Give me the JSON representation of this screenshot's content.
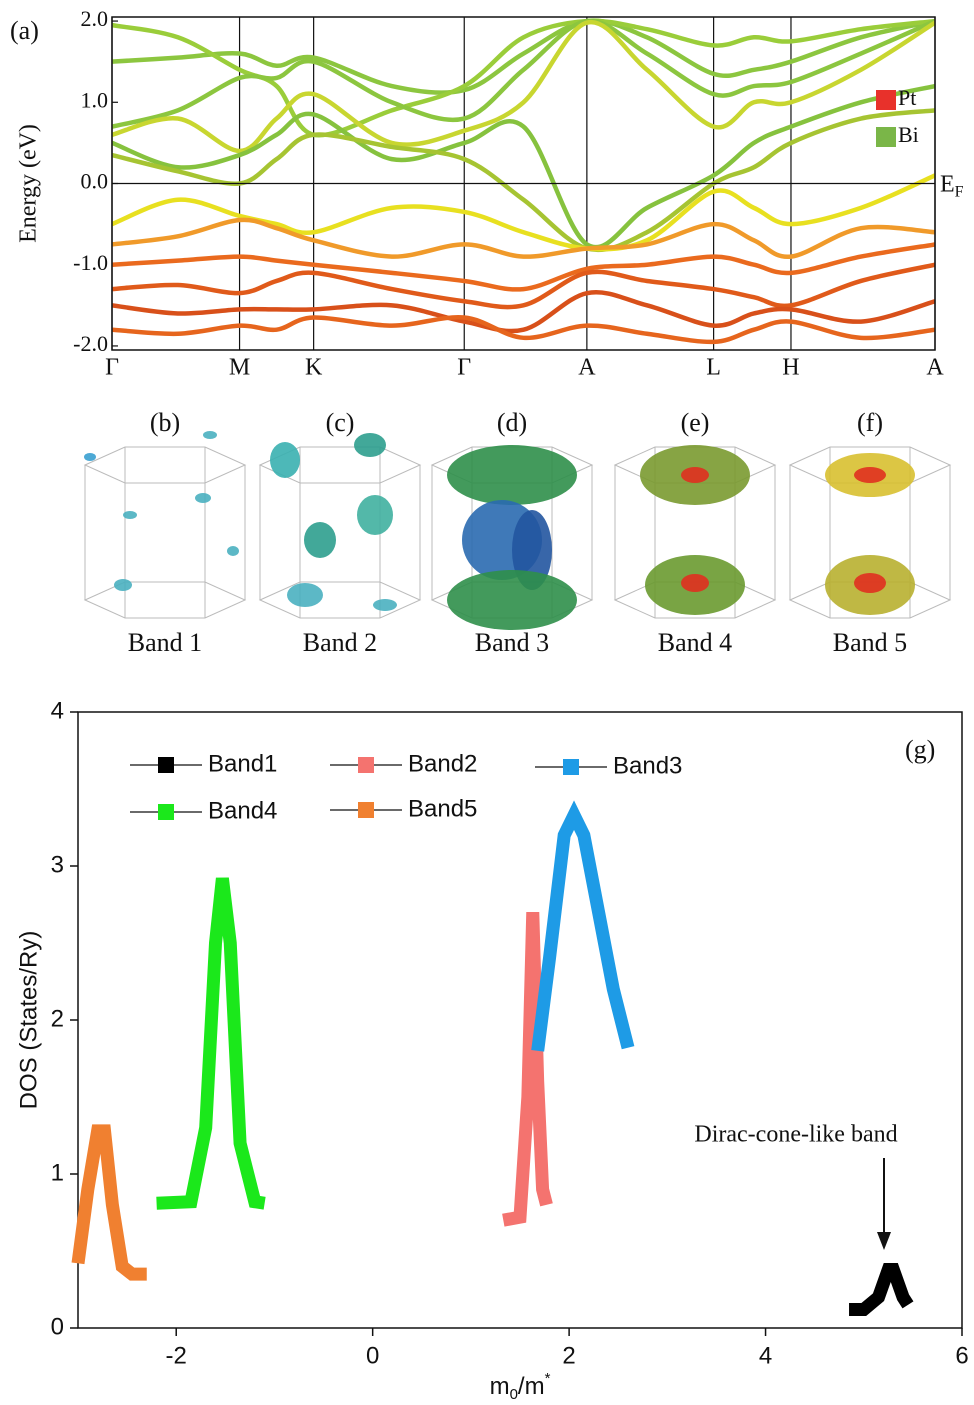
{
  "chart_data": [
    {
      "type": "line",
      "panel_label": "(a)",
      "ylabel": "Energy (eV)",
      "xlim": [
        0,
        1
      ],
      "ylim": [
        -2.05,
        2.05
      ],
      "xticks": [
        {
          "value": 0,
          "label": "Γ"
        },
        {
          "value": 0.155,
          "label": "M"
        },
        {
          "value": 0.245,
          "label": "K"
        },
        {
          "value": 0.428,
          "label": "Γ"
        },
        {
          "value": 0.577,
          "label": "A"
        },
        {
          "value": 0.731,
          "label": "L"
        },
        {
          "value": 0.825,
          "label": "H"
        },
        {
          "value": 1.0,
          "label": "A"
        }
      ],
      "yticks": [
        {
          "value": -2,
          "label": "-2.0"
        },
        {
          "value": -1,
          "label": "-1.0"
        },
        {
          "value": 0,
          "label": "0.0"
        },
        {
          "value": 1,
          "label": "1.0"
        },
        {
          "value": 2,
          "label": "2.0"
        }
      ],
      "fermi_level": {
        "value": 0,
        "label": [
          "E",
          "F"
        ]
      },
      "legend": [
        {
          "name": "Pt",
          "color": "#e8312b"
        },
        {
          "name": "Bi",
          "color": "#7ab648"
        }
      ],
      "x": [
        0,
        0.08,
        0.155,
        0.2,
        0.245,
        0.34,
        0.428,
        0.5,
        0.577,
        0.65,
        0.731,
        0.78,
        0.825,
        0.91,
        1.0
      ],
      "series": [
        {
          "color": "#8cc63f",
          "values": [
            1.5,
            1.55,
            1.6,
            1.45,
            1.55,
            1.2,
            1.15,
            1.6,
            2.0,
            1.8,
            1.35,
            1.4,
            1.5,
            1.8,
            2.0
          ]
        },
        {
          "color": "#9acd3a",
          "values": [
            1.95,
            1.8,
            1.4,
            1.2,
            0.6,
            0.9,
            1.2,
            1.8,
            2.0,
            1.9,
            1.7,
            1.8,
            1.75,
            1.9,
            2.0
          ]
        },
        {
          "color": "#8cc63f",
          "values": [
            0.7,
            0.9,
            1.3,
            1.3,
            1.5,
            1.0,
            0.8,
            1.4,
            2.0,
            1.6,
            1.1,
            1.2,
            1.25,
            1.6,
            2.0
          ]
        },
        {
          "color": "#c8d630",
          "values": [
            0.6,
            0.8,
            0.4,
            0.8,
            1.1,
            0.5,
            0.65,
            1.0,
            1.98,
            1.4,
            0.7,
            1.0,
            1.0,
            1.4,
            1.98
          ]
        },
        {
          "color": "#86c23e",
          "values": [
            0.5,
            0.2,
            0.35,
            0.6,
            0.85,
            0.3,
            0.5,
            0.7,
            -0.75,
            -0.3,
            0.1,
            0.5,
            0.7,
            1.0,
            1.2
          ]
        },
        {
          "color": "#a6c432",
          "values": [
            0.35,
            0.15,
            0.0,
            0.3,
            0.6,
            0.45,
            0.3,
            -0.2,
            -0.8,
            -0.6,
            0.0,
            0.2,
            0.5,
            0.8,
            0.9
          ]
        },
        {
          "color": "#e8e020",
          "values": [
            -0.5,
            -0.2,
            -0.4,
            -0.5,
            -0.6,
            -0.3,
            -0.35,
            -0.6,
            -0.8,
            -0.7,
            -0.1,
            -0.3,
            -0.5,
            -0.3,
            0.1
          ]
        },
        {
          "color": "#f09a2a",
          "values": [
            -0.75,
            -0.65,
            -0.45,
            -0.55,
            -0.7,
            -0.9,
            -0.75,
            -0.9,
            -0.8,
            -0.75,
            -0.5,
            -0.7,
            -0.9,
            -0.55,
            -0.6
          ]
        },
        {
          "color": "#ea6a1e",
          "values": [
            -1.0,
            -0.95,
            -0.9,
            -0.95,
            -1.0,
            -1.1,
            -1.2,
            -1.3,
            -1.05,
            -1.0,
            -0.9,
            -1.0,
            -1.1,
            -0.9,
            -0.75
          ]
        },
        {
          "color": "#e05a1a",
          "values": [
            -1.3,
            -1.25,
            -1.35,
            -1.2,
            -1.1,
            -1.3,
            -1.45,
            -1.5,
            -1.1,
            -1.2,
            -1.3,
            -1.4,
            -1.5,
            -1.2,
            -1.0
          ]
        },
        {
          "color": "#d8501a",
          "values": [
            -1.5,
            -1.6,
            -1.55,
            -1.55,
            -1.55,
            -1.5,
            -1.7,
            -1.8,
            -1.35,
            -1.5,
            -1.75,
            -1.6,
            -1.55,
            -1.7,
            -1.45
          ]
        },
        {
          "color": "#e6651d",
          "values": [
            -1.8,
            -1.85,
            -1.75,
            -1.8,
            -1.65,
            -1.75,
            -1.65,
            -1.9,
            -1.75,
            -1.85,
            -1.95,
            -1.8,
            -1.7,
            -1.9,
            -1.8
          ]
        }
      ]
    },
    {
      "type": "line",
      "panel_label": "(g)",
      "ylabel": "DOS (States/Ry)",
      "xlabel": [
        "m",
        "0",
        "/m",
        "*"
      ],
      "annotation": "Dirac-cone-like band",
      "xlim": [
        -3,
        6
      ],
      "ylim": [
        0,
        4
      ],
      "xticks": [
        -2,
        0,
        2,
        4,
        6
      ],
      "yticks": [
        0,
        1,
        2,
        3,
        4
      ],
      "series": [
        {
          "name": "Band1",
          "color": "#000000",
          "x": [
            4.85,
            5.0,
            5.15,
            5.25,
            5.3,
            5.4,
            5.45
          ],
          "values": [
            0.12,
            0.12,
            0.2,
            0.38,
            0.38,
            0.2,
            0.15
          ]
        },
        {
          "name": "Band2",
          "color": "#f4736f",
          "x": [
            1.33,
            1.5,
            1.58,
            1.63,
            1.68,
            1.73,
            1.77
          ],
          "values": [
            0.7,
            0.72,
            1.5,
            2.7,
            1.6,
            0.9,
            0.8
          ]
        },
        {
          "name": "Band3",
          "color": "#1e9be6",
          "x": [
            1.68,
            1.8,
            1.95,
            2.05,
            2.15,
            2.3,
            2.45,
            2.6
          ],
          "values": [
            1.8,
            2.4,
            3.2,
            3.33,
            3.2,
            2.7,
            2.2,
            1.82
          ]
        },
        {
          "name": "Band4",
          "color": "#1be81b",
          "x": [
            -2.2,
            -1.85,
            -1.7,
            -1.6,
            -1.53,
            -1.45,
            -1.35,
            -1.2,
            -1.1
          ],
          "values": [
            0.81,
            0.82,
            1.3,
            2.5,
            2.92,
            2.5,
            1.2,
            0.82,
            0.81
          ]
        },
        {
          "name": "Band5",
          "color": "#f08030",
          "x": [
            -3.0,
            -2.9,
            -2.8,
            -2.73,
            -2.65,
            -2.55,
            -2.45,
            -2.3
          ],
          "values": [
            0.42,
            0.9,
            1.28,
            1.28,
            0.8,
            0.4,
            0.35,
            0.35
          ]
        }
      ]
    }
  ],
  "fermi_surfaces": {
    "labels": [
      "(b)",
      "(c)",
      "(d)",
      "(e)",
      "(f)"
    ],
    "captions": [
      "Band 1",
      "Band 2",
      "Band 3",
      "Band 4",
      "Band 5"
    ]
  }
}
